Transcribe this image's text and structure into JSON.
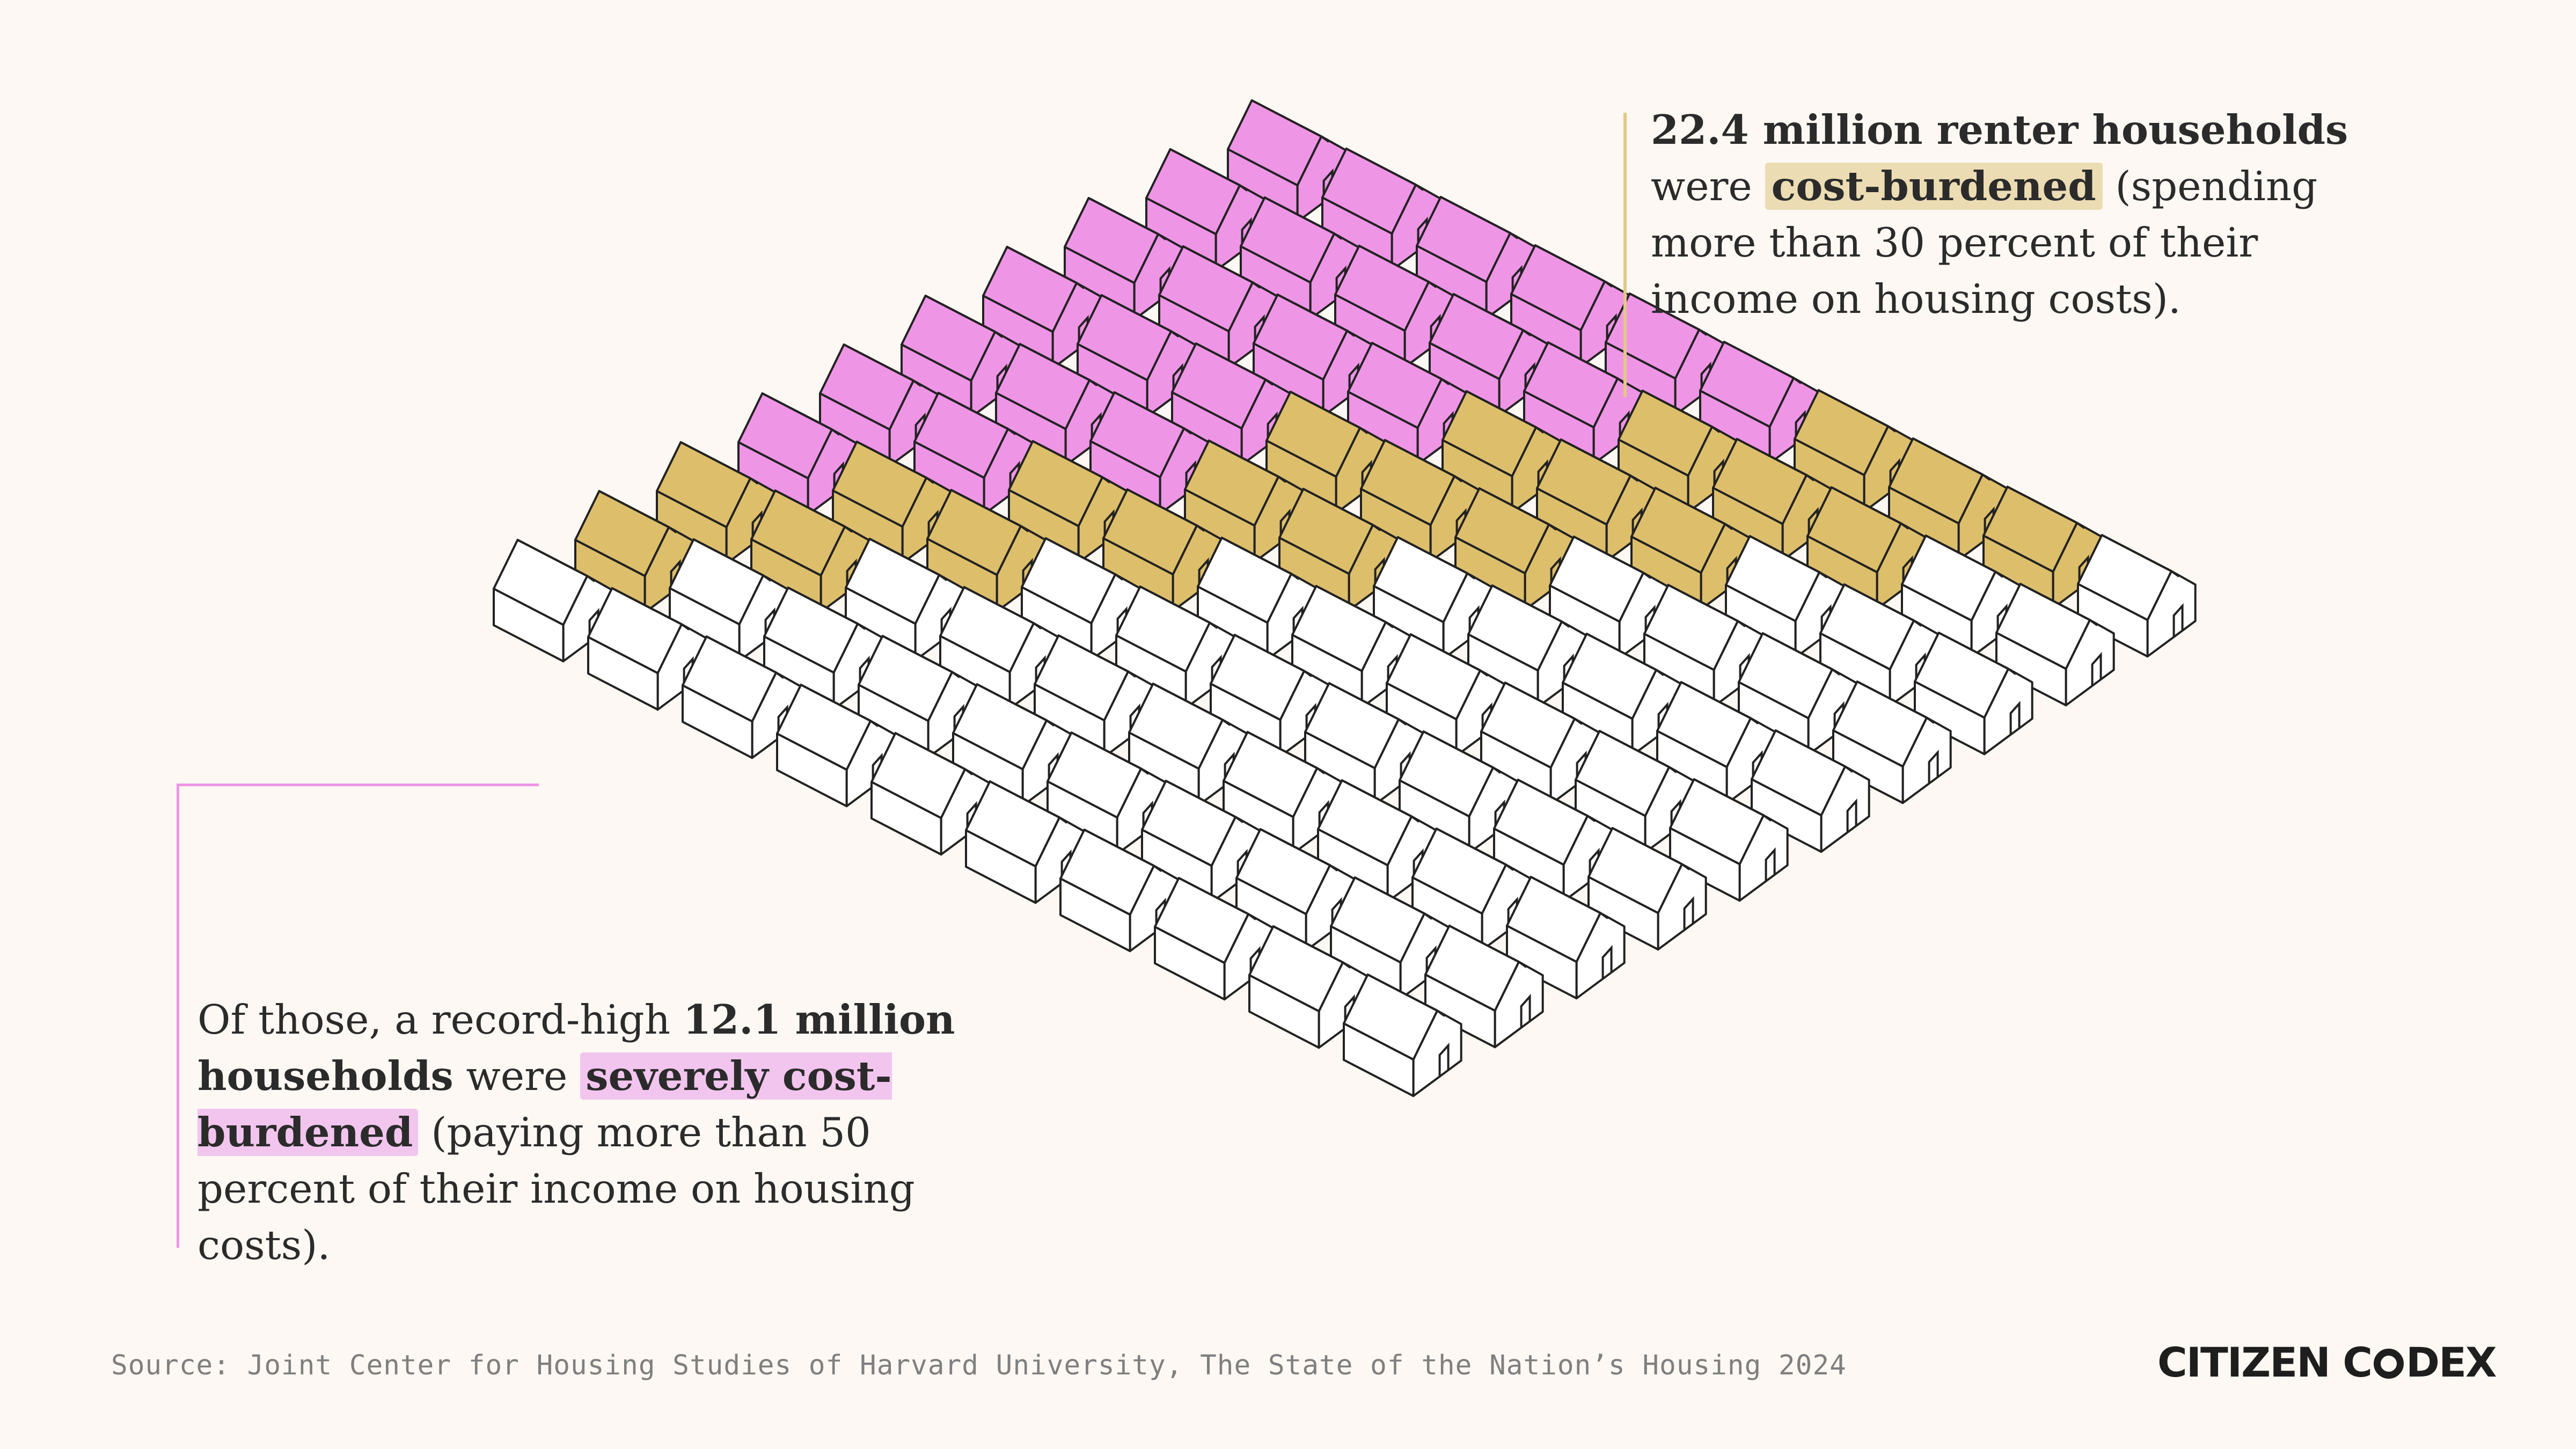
{
  "colors": {
    "background": "#fdf8f3",
    "severely_cost_burdened": "#ef95e6",
    "cost_burdened": "#ddbe6b",
    "not_burdened": "#ffffff",
    "outline": "#222222"
  },
  "callout_top": {
    "bold_lead": "22.4 million renter households",
    "text_before_highlight": "were",
    "highlight": "cost-burdened",
    "text_after_highlight": "(spending more than 30 percent of their income on housing costs)."
  },
  "callout_bottom": {
    "text_lead": "Of those, a record-high",
    "bold": "12.1 million households",
    "text_were": "were",
    "highlight": "severely cost-burdened",
    "text_after_highlight": "(paying more than 50 percent of their income on housing costs)."
  },
  "house_grid": {
    "rows": 10,
    "columns": 10,
    "counts": {
      "severely_cost_burdened": 24,
      "cost_burdened": 21,
      "not_burdened": 55
    }
  },
  "source": "Source: Joint Center for Housing Studies of Harvard University, The State of the Nation’s Housing 2024",
  "logo": {
    "left": "CITIZEN C",
    "right": "DEX"
  }
}
